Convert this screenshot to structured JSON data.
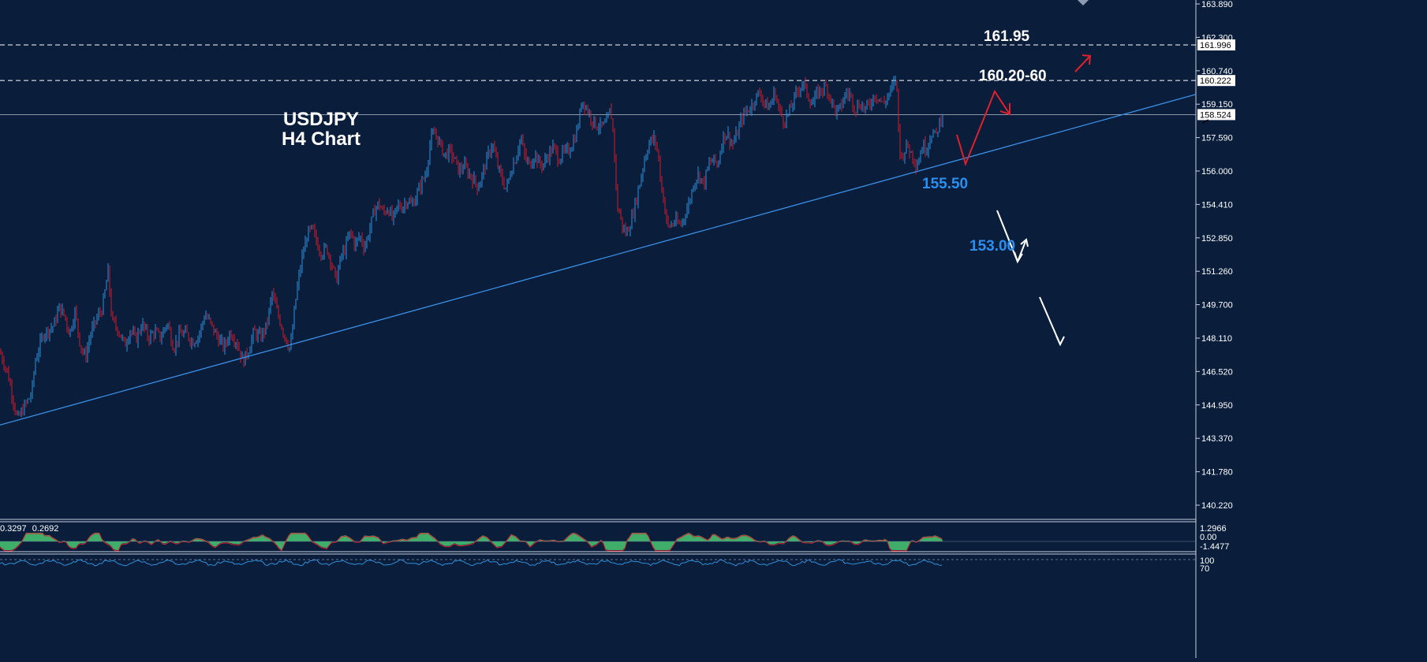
{
  "colors": {
    "background": "#0a1e3c",
    "grid_border": "#c8d0dc",
    "bull": "#2f8fd8",
    "bear": "#d01b2a",
    "trendline": "#3a8fe6",
    "white": "#ffffff",
    "annotation_blue": "#2b8ff0",
    "annotation_red": "#e0202c",
    "macd_fill": "#3fae6a",
    "macd_line": "#e0202c"
  },
  "chart_data": {
    "type": "candlestick",
    "symbol": "USDJPY",
    "timeframe": "H4",
    "title_lines": [
      "USDJPY",
      "H4 Chart"
    ],
    "ylim": [
      138.7,
      164.0
    ],
    "y_ticks": [
      "163.890",
      "162.300",
      "160.740",
      "159.150",
      "157.590",
      "156.000",
      "154.410",
      "152.850",
      "151.260",
      "149.700",
      "148.110",
      "146.520",
      "144.950",
      "143.370",
      "141.780",
      "140.220"
    ],
    "price_tags": [
      {
        "label": "161.996",
        "value": 161.996
      },
      {
        "label": "160.222",
        "value": 160.222
      },
      {
        "label": "158.524",
        "value": 158.524
      }
    ],
    "current_price": 158.524,
    "levels": [
      {
        "label": "161.95",
        "value": 161.996,
        "style": "dashed"
      },
      {
        "label": "160.20-60",
        "value": 160.222,
        "style": "dashed"
      }
    ],
    "support_labels": [
      {
        "label": "155.50",
        "value": 155.5
      },
      {
        "label": "153.00",
        "value": 153.0
      }
    ],
    "trendline": {
      "from": [
        0,
        143.05
      ],
      "to": [
        1490,
        159.25
      ]
    },
    "price_path": [
      [
        0,
        146.7
      ],
      [
        10,
        145.6
      ],
      [
        22,
        143.3
      ],
      [
        30,
        143.9
      ],
      [
        40,
        144.6
      ],
      [
        45,
        146.3
      ],
      [
        55,
        147.6
      ],
      [
        68,
        148.0
      ],
      [
        75,
        148.9
      ],
      [
        82,
        148.5
      ],
      [
        88,
        147.6
      ],
      [
        95,
        148.7
      ],
      [
        102,
        147.0
      ],
      [
        108,
        146.4
      ],
      [
        115,
        147.6
      ],
      [
        122,
        148.3
      ],
      [
        130,
        148.9
      ],
      [
        137,
        150.7
      ],
      [
        142,
        148.2
      ],
      [
        150,
        147.8
      ],
      [
        158,
        147.0
      ],
      [
        165,
        147.8
      ],
      [
        172,
        147.3
      ],
      [
        180,
        148.1
      ],
      [
        188,
        147.4
      ],
      [
        196,
        147.7
      ],
      [
        204,
        147.4
      ],
      [
        212,
        148.2
      ],
      [
        220,
        146.9
      ],
      [
        228,
        147.6
      ],
      [
        236,
        147.6
      ],
      [
        244,
        147.2
      ],
      [
        252,
        147.5
      ],
      [
        260,
        148.6
      ],
      [
        268,
        148.0
      ],
      [
        276,
        147.4
      ],
      [
        284,
        146.9
      ],
      [
        292,
        147.7
      ],
      [
        300,
        147.2
      ],
      [
        308,
        146.2
      ],
      [
        315,
        146.8
      ],
      [
        322,
        147.7
      ],
      [
        330,
        147.4
      ],
      [
        338,
        148.0
      ],
      [
        345,
        149.6
      ],
      [
        352,
        148.6
      ],
      [
        360,
        147.6
      ],
      [
        368,
        146.8
      ],
      [
        376,
        149.7
      ],
      [
        383,
        151.4
      ],
      [
        390,
        152.6
      ],
      [
        396,
        152.8
      ],
      [
        402,
        152.1
      ],
      [
        408,
        151.6
      ],
      [
        414,
        151.9
      ],
      [
        420,
        151.2
      ],
      [
        426,
        150.2
      ],
      [
        432,
        151.4
      ],
      [
        438,
        151.9
      ],
      [
        444,
        152.7
      ],
      [
        450,
        152.0
      ],
      [
        456,
        152.5
      ],
      [
        462,
        151.9
      ],
      [
        468,
        152.7
      ],
      [
        474,
        153.7
      ],
      [
        480,
        154.1
      ],
      [
        486,
        153.6
      ],
      [
        492,
        153.9
      ],
      [
        498,
        153.2
      ],
      [
        504,
        154.0
      ],
      [
        510,
        153.9
      ],
      [
        516,
        154.3
      ],
      [
        522,
        154.0
      ],
      [
        528,
        154.5
      ],
      [
        534,
        155.1
      ],
      [
        540,
        155.6
      ],
      [
        546,
        157.3
      ],
      [
        552,
        157.6
      ],
      [
        558,
        157.0
      ],
      [
        564,
        156.5
      ],
      [
        570,
        156.7
      ],
      [
        576,
        156.3
      ],
      [
        582,
        155.7
      ],
      [
        588,
        156.0
      ],
      [
        594,
        155.6
      ],
      [
        600,
        155.3
      ],
      [
        606,
        154.9
      ],
      [
        612,
        155.6
      ],
      [
        618,
        156.4
      ],
      [
        624,
        157.1
      ],
      [
        630,
        156.1
      ],
      [
        636,
        155.3
      ],
      [
        642,
        154.8
      ],
      [
        648,
        155.8
      ],
      [
        654,
        156.4
      ],
      [
        660,
        157.4
      ],
      [
        666,
        156.3
      ],
      [
        672,
        156.0
      ],
      [
        678,
        156.6
      ],
      [
        684,
        156.0
      ],
      [
        690,
        156.1
      ],
      [
        696,
        156.6
      ],
      [
        702,
        156.9
      ],
      [
        708,
        156.3
      ],
      [
        714,
        156.6
      ],
      [
        720,
        156.7
      ],
      [
        726,
        157.1
      ],
      [
        732,
        157.8
      ],
      [
        738,
        159.3
      ],
      [
        744,
        158.8
      ],
      [
        750,
        158.3
      ],
      [
        756,
        158.0
      ],
      [
        762,
        157.9
      ],
      [
        768,
        158.0
      ],
      [
        774,
        158.8
      ],
      [
        778,
        157.4
      ],
      [
        782,
        154.0
      ],
      [
        786,
        153.5
      ],
      [
        790,
        152.8
      ],
      [
        794,
        152.6
      ],
      [
        800,
        153.2
      ],
      [
        806,
        154.2
      ],
      [
        812,
        155.3
      ],
      [
        818,
        156.5
      ],
      [
        824,
        157.2
      ],
      [
        830,
        157.3
      ],
      [
        834,
        156.6
      ],
      [
        838,
        155.1
      ],
      [
        842,
        154.1
      ],
      [
        846,
        152.9
      ],
      [
        850,
        153.0
      ],
      [
        856,
        153.2
      ],
      [
        862,
        153.0
      ],
      [
        868,
        153.5
      ],
      [
        874,
        154.2
      ],
      [
        880,
        155.2
      ],
      [
        886,
        155.6
      ],
      [
        892,
        155.0
      ],
      [
        898,
        156.0
      ],
      [
        904,
        156.3
      ],
      [
        910,
        156.0
      ],
      [
        916,
        157.4
      ],
      [
        922,
        157.6
      ],
      [
        928,
        157.0
      ],
      [
        934,
        157.5
      ],
      [
        940,
        158.3
      ],
      [
        946,
        158.7
      ],
      [
        952,
        158.9
      ],
      [
        958,
        159.4
      ],
      [
        964,
        159.6
      ],
      [
        970,
        159.0
      ],
      [
        976,
        158.9
      ],
      [
        982,
        159.7
      ],
      [
        988,
        158.7
      ],
      [
        994,
        158.2
      ],
      [
        1000,
        158.6
      ],
      [
        1006,
        159.2
      ],
      [
        1012,
        159.8
      ],
      [
        1018,
        160.1
      ],
      [
        1024,
        159.5
      ],
      [
        1030,
        159.0
      ],
      [
        1036,
        159.6
      ],
      [
        1042,
        159.8
      ],
      [
        1048,
        159.9
      ],
      [
        1054,
        159.2
      ],
      [
        1060,
        158.6
      ],
      [
        1066,
        158.9
      ],
      [
        1072,
        159.6
      ],
      [
        1078,
        159.5
      ],
      [
        1084,
        158.8
      ],
      [
        1090,
        159.1
      ],
      [
        1096,
        158.8
      ],
      [
        1102,
        159.0
      ],
      [
        1108,
        159.5
      ],
      [
        1114,
        159.4
      ],
      [
        1120,
        159.0
      ],
      [
        1126,
        159.5
      ],
      [
        1132,
        159.9
      ],
      [
        1136,
        160.5
      ],
      [
        1139,
        157.9
      ],
      [
        1142,
        156.2
      ],
      [
        1146,
        156.7
      ],
      [
        1150,
        157.0
      ],
      [
        1154,
        156.7
      ],
      [
        1158,
        156.4
      ],
      [
        1162,
        156.0
      ],
      [
        1166,
        156.5
      ],
      [
        1170,
        157.0
      ],
      [
        1174,
        156.8
      ],
      [
        1178,
        157.3
      ],
      [
        1182,
        157.7
      ],
      [
        1186,
        157.4
      ],
      [
        1190,
        158.0
      ],
      [
        1195,
        158.6
      ]
    ],
    "lower_panels": {
      "macd_values": [
        "0.3297",
        "0.2692"
      ],
      "macd_ticks": [
        "1.2966",
        "0.00",
        "-1.4477"
      ],
      "rsi_ticks": [
        "100",
        "70"
      ]
    }
  }
}
